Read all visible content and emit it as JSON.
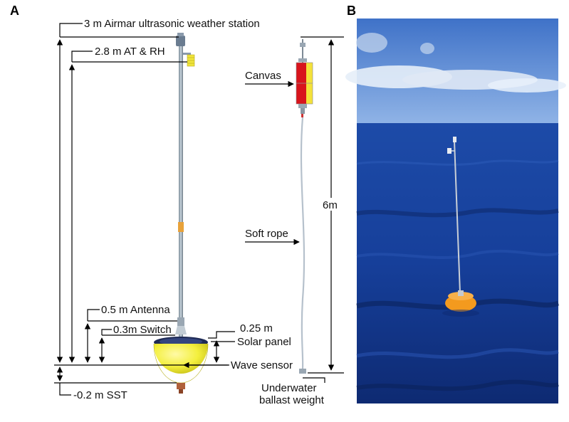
{
  "panels": {
    "a": {
      "letter": "A"
    },
    "b": {
      "letter": "B"
    }
  },
  "labels": {
    "weather_station": "3 m Airmar ultrasonic weather station",
    "at_rh": "2.8 m AT & RH",
    "antenna": "0.5 m Antenna",
    "switch": "0.3m Switch",
    "solar_height": "0.25 m",
    "solar_panel": "Solar panel",
    "wave_sensor": "Wave sensor",
    "sst": "-0.2 m SST",
    "canvas": "Canvas",
    "soft_rope": "Soft rope",
    "rope_length": "6m",
    "ballast_line1": "Underwater",
    "ballast_line2": "ballast weight"
  },
  "colors": {
    "buoy_yellow": "#f3ef3c",
    "float_orange": "#f39a1e",
    "canvas_red": "#d8141c",
    "sea_blue": "#163f9a",
    "sky_blue": "#5e8fd6"
  },
  "photo": {
    "description_icon": "buoy-photo-icon"
  }
}
